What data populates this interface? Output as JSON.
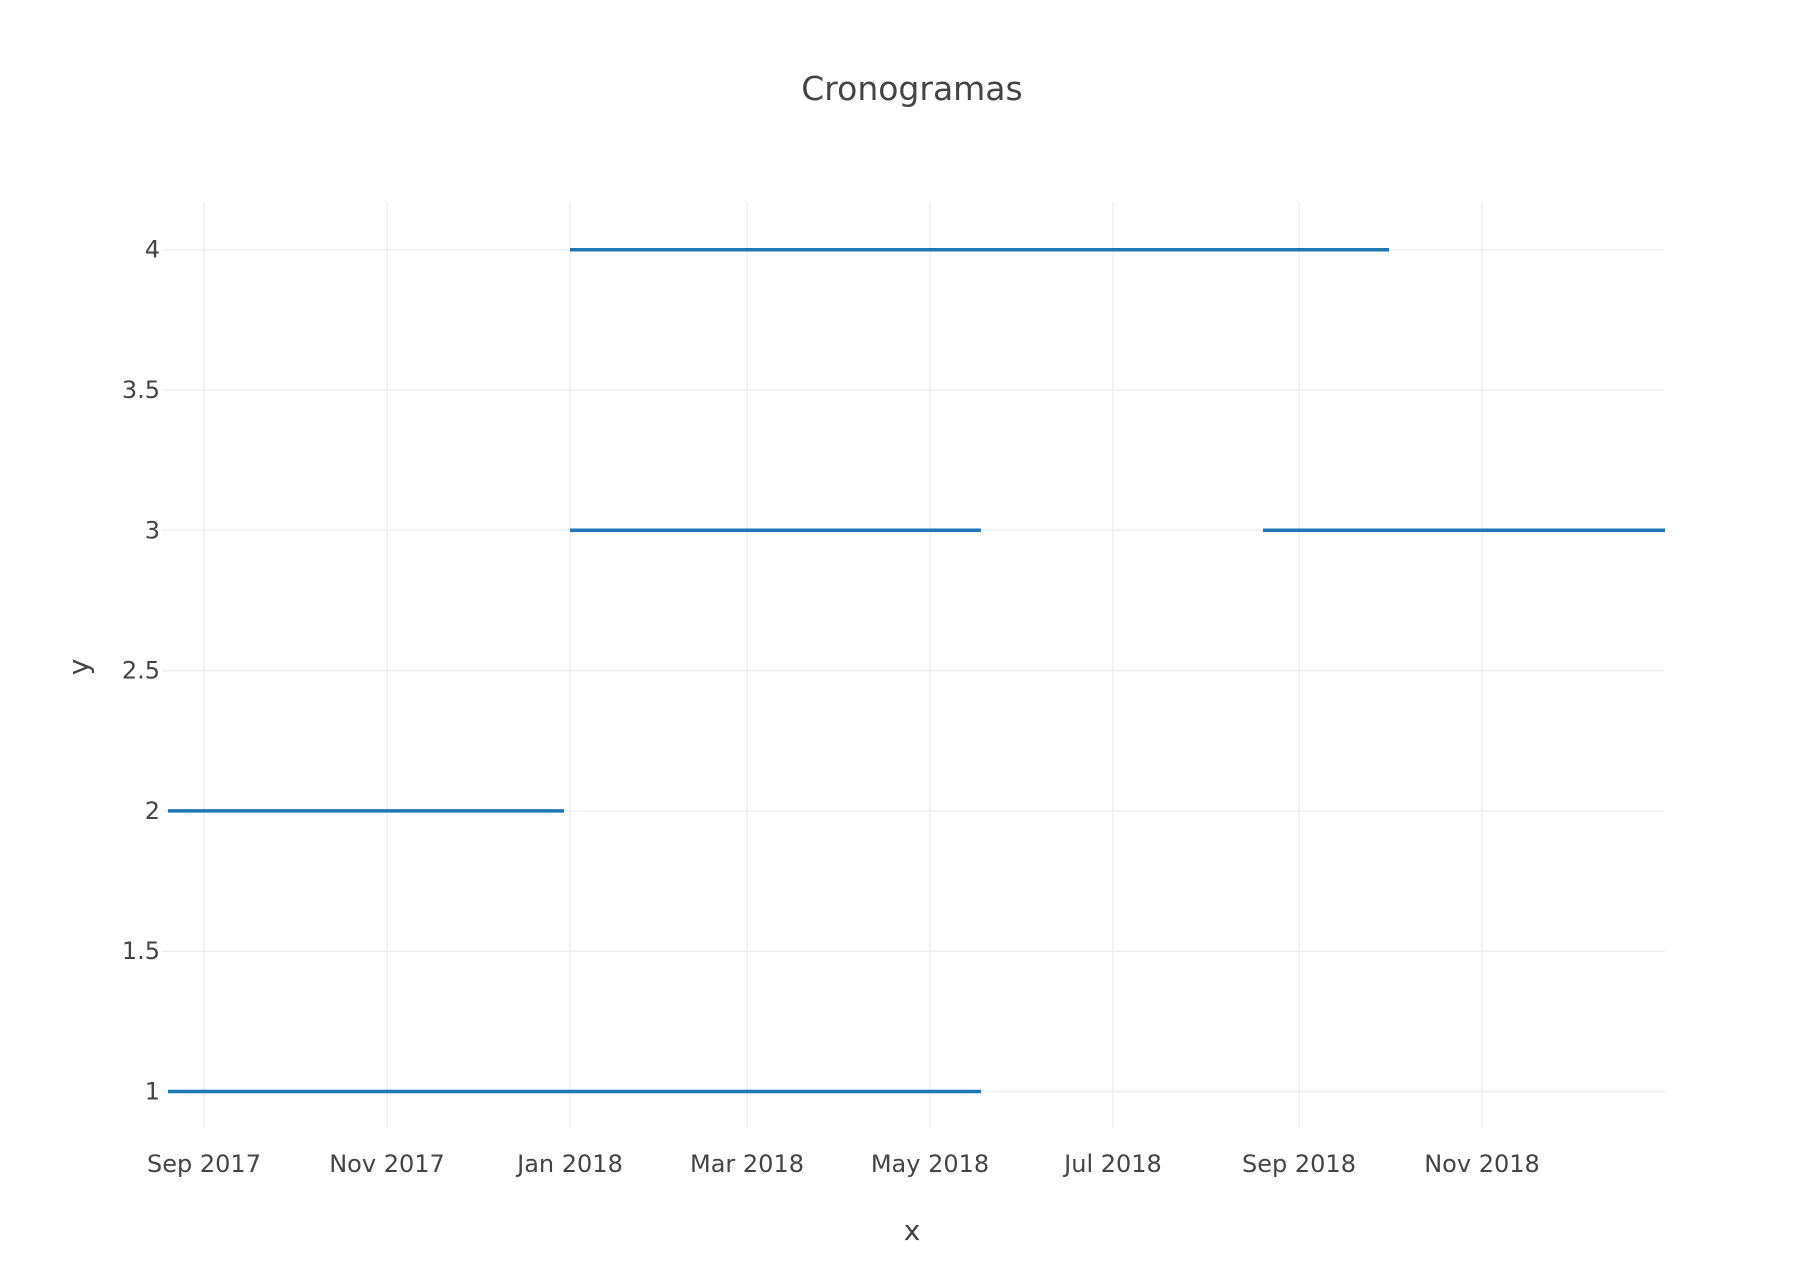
{
  "chart_data": {
    "type": "line",
    "title": "Cronogramas",
    "xlabel": "x",
    "ylabel": "y",
    "x_type": "date",
    "xlim": [
      "2017-08-18",
      "2019-01-01"
    ],
    "ylim": [
      0.87,
      4.17
    ],
    "grid": true,
    "x_ticks": [
      {
        "date": "2017-09-01",
        "label": "Sep 2017"
      },
      {
        "date": "2017-11-01",
        "label": "Nov 2017"
      },
      {
        "date": "2018-01-01",
        "label": "Jan 2018"
      },
      {
        "date": "2018-03-01",
        "label": "Mar 2018"
      },
      {
        "date": "2018-05-01",
        "label": "May 2018"
      },
      {
        "date": "2018-07-01",
        "label": "Jul 2018"
      },
      {
        "date": "2018-09-01",
        "label": "Sep 2018"
      },
      {
        "date": "2018-11-01",
        "label": "Nov 2018"
      }
    ],
    "y_ticks": [
      {
        "value": 1,
        "label": "1"
      },
      {
        "value": 1.5,
        "label": "1.5"
      },
      {
        "value": 2,
        "label": "2"
      },
      {
        "value": 2.5,
        "label": "2.5"
      },
      {
        "value": 3,
        "label": "3"
      },
      {
        "value": 3.5,
        "label": "3.5"
      },
      {
        "value": 4,
        "label": "4"
      }
    ],
    "series": [
      {
        "color": "#1f77b4",
        "segments": [
          {
            "y": 1,
            "x_start": "2017-08-20",
            "x_end": "2018-05-18"
          },
          {
            "y": 2,
            "x_start": "2017-08-20",
            "x_end": "2017-12-30"
          },
          {
            "y": 3,
            "x_start": "2018-01-01",
            "x_end": "2018-05-18"
          },
          {
            "y": 3,
            "x_start": "2018-08-20",
            "x_end": "2019-01-01"
          },
          {
            "y": 4,
            "x_start": "2018-01-01",
            "x_end": "2018-10-01"
          }
        ]
      }
    ]
  }
}
